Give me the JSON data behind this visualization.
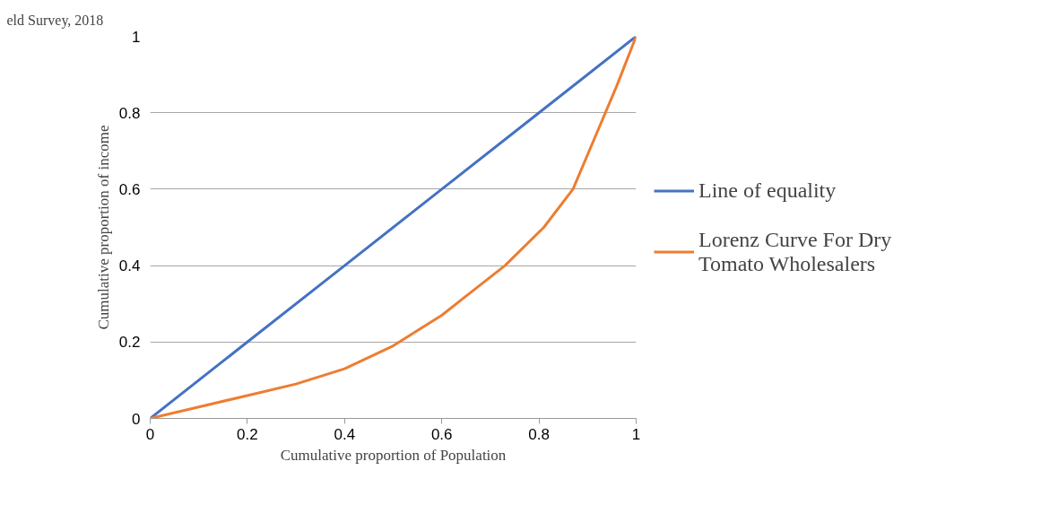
{
  "chart_data": {
    "type": "line",
    "xlabel": "Cumulative proportion of Population",
    "ylabel": "Cumulative proportion of income",
    "annotations": [
      "eld Survey, 2018"
    ],
    "xlim": [
      0,
      1
    ],
    "ylim": [
      0,
      1
    ],
    "xticks": [
      0,
      {
        "value": 0.2,
        "label": "0.2"
      },
      {
        "value": 0.4,
        "label": "0.4"
      },
      {
        "value": 0.6,
        "label": "0.6"
      },
      {
        "value": 0.8,
        "label": "0.8"
      },
      1
    ],
    "yticks": [
      0,
      {
        "value": 0.2,
        "label": "0.2"
      },
      {
        "value": 0.4,
        "label": "0.4"
      },
      {
        "value": 0.6,
        "label": "0.6"
      },
      {
        "value": 0.8,
        "label": "0.8"
      },
      1
    ],
    "grid": "y",
    "legend": "right",
    "marker": "none",
    "line_style": "solid",
    "series": [
      {
        "name": "Line of equality",
        "color": "#4472c4",
        "x": [
          0,
          0.2,
          0.4,
          0.6,
          0.8,
          1
        ],
        "values": [
          0,
          0.2,
          0.4,
          0.6,
          0.8,
          1
        ]
      },
      {
        "name": "Lorenz Curve For Dry Tomato Wholesalers",
        "color": "#ed7d31",
        "x": [
          0,
          0.1,
          0.2,
          0.3,
          0.4,
          0.5,
          0.6,
          0.73,
          0.81,
          0.87,
          0.92,
          0.96,
          1
        ],
        "values": [
          0,
          0.03,
          0.06,
          0.09,
          0.13,
          0.19,
          0.27,
          0.4,
          0.5,
          0.6,
          0.75,
          0.87,
          1
        ]
      }
    ]
  }
}
